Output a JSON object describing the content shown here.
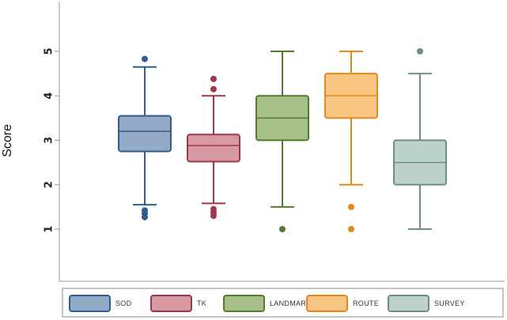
{
  "chart_data": {
    "type": "box",
    "ylabel": "Score",
    "ylim": [
      0.2,
      6.4
    ],
    "yticks": [
      1,
      2,
      3,
      4,
      5
    ],
    "legend_position": "bottom",
    "series": [
      {
        "name": "SOD",
        "color": "#2f5d8e",
        "fill": "#93a9c6",
        "whisker_low": 1.55,
        "q1": 2.75,
        "median": 3.2,
        "q3": 3.55,
        "whisker_high": 4.65,
        "outliers": [
          4.83,
          1.42,
          1.35,
          1.27
        ]
      },
      {
        "name": "TK",
        "color": "#a0364a",
        "fill": "#d79aa5",
        "whisker_low": 1.58,
        "q1": 2.52,
        "median": 2.88,
        "q3": 3.13,
        "whisker_high": 4.0,
        "outliers": [
          4.38,
          4.15,
          1.45,
          1.37,
          1.3
        ]
      },
      {
        "name": "LANDMARK",
        "color": "#557a2c",
        "fill": "#a7c08a",
        "whisker_low": 1.5,
        "q1": 3.0,
        "median": 3.5,
        "q3": 4.0,
        "whisker_high": 5.0,
        "outliers": [
          1.0
        ]
      },
      {
        "name": "ROUTE",
        "color": "#e08a1e",
        "fill": "#f8c682",
        "whisker_low": 2.0,
        "q1": 3.5,
        "median": 4.0,
        "q3": 4.5,
        "whisker_high": 5.0,
        "outliers": [
          1.5,
          1.0
        ]
      },
      {
        "name": "SURVEY",
        "color": "#6b8f84",
        "fill": "#bdd2cb",
        "whisker_low": 1.0,
        "q1": 2.0,
        "median": 2.5,
        "q3": 3.0,
        "whisker_high": 4.5,
        "outliers": [
          5.0
        ]
      }
    ]
  }
}
